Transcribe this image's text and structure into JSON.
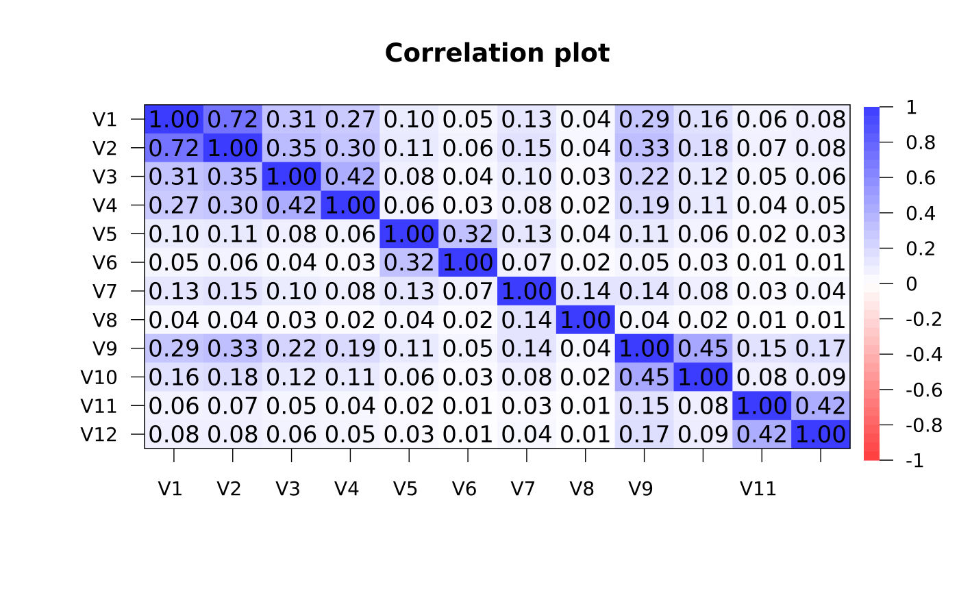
{
  "chart_data": {
    "type": "heatmap",
    "title": "Correlation plot",
    "row_labels": [
      "V1",
      "V2",
      "V3",
      "V4",
      "V5",
      "V6",
      "V7",
      "V8",
      "V9",
      "V10",
      "V11",
      "V12"
    ],
    "col_tick_labels": [
      "V1",
      "V2",
      "V3",
      "V4",
      "V5",
      "V6",
      "V7",
      "V8",
      "V9",
      "",
      "V11",
      ""
    ],
    "matrix": [
      [
        1.0,
        0.72,
        0.31,
        0.27,
        0.1,
        0.05,
        0.13,
        0.04,
        0.29,
        0.16,
        0.06,
        0.08
      ],
      [
        0.72,
        1.0,
        0.35,
        0.3,
        0.11,
        0.06,
        0.15,
        0.04,
        0.33,
        0.18,
        0.07,
        0.08
      ],
      [
        0.31,
        0.35,
        1.0,
        0.42,
        0.08,
        0.04,
        0.1,
        0.03,
        0.22,
        0.12,
        0.05,
        0.06
      ],
      [
        0.27,
        0.3,
        0.42,
        1.0,
        0.06,
        0.03,
        0.08,
        0.02,
        0.19,
        0.11,
        0.04,
        0.05
      ],
      [
        0.1,
        0.11,
        0.08,
        0.06,
        1.0,
        0.32,
        0.13,
        0.04,
        0.11,
        0.06,
        0.02,
        0.03
      ],
      [
        0.05,
        0.06,
        0.04,
        0.03,
        0.32,
        1.0,
        0.07,
        0.02,
        0.05,
        0.03,
        0.01,
        0.01
      ],
      [
        0.13,
        0.15,
        0.1,
        0.08,
        0.13,
        0.07,
        1.0,
        0.14,
        0.14,
        0.08,
        0.03,
        0.04
      ],
      [
        0.04,
        0.04,
        0.03,
        0.02,
        0.04,
        0.02,
        0.14,
        1.0,
        0.04,
        0.02,
        0.01,
        0.01
      ],
      [
        0.29,
        0.33,
        0.22,
        0.19,
        0.11,
        0.05,
        0.14,
        0.04,
        1.0,
        0.45,
        0.15,
        0.17
      ],
      [
        0.16,
        0.18,
        0.12,
        0.11,
        0.06,
        0.03,
        0.08,
        0.02,
        0.45,
        1.0,
        0.08,
        0.09
      ],
      [
        0.06,
        0.07,
        0.05,
        0.04,
        0.02,
        0.01,
        0.03,
        0.01,
        0.15,
        0.08,
        1.0,
        0.42
      ],
      [
        0.08,
        0.08,
        0.06,
        0.05,
        0.03,
        0.01,
        0.04,
        0.01,
        0.17,
        0.09,
        0.42,
        1.0
      ]
    ],
    "color_scale": {
      "range": [
        -1,
        1
      ],
      "low_color": "#ff3c3c",
      "mid_color": "#ffffff",
      "high_color": "#3c3cff",
      "tick_labels": [
        "1",
        "0.8",
        "0.6",
        "0.4",
        "0.2",
        "0",
        "-0.2",
        "-0.4",
        "-0.6",
        "-0.8",
        "-1"
      ],
      "tick_values": [
        1,
        0.8,
        0.6,
        0.4,
        0.2,
        0,
        -0.2,
        -0.4,
        -0.6,
        -0.8,
        -1
      ]
    },
    "legend_position": "right"
  }
}
